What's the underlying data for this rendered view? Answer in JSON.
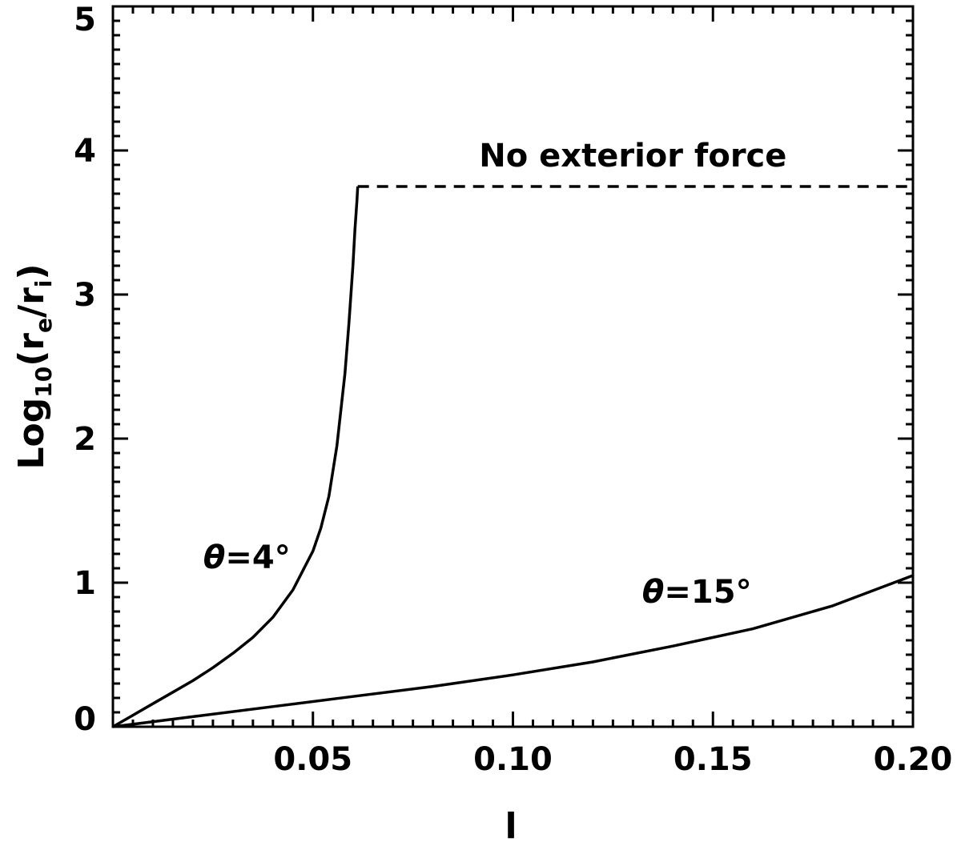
{
  "chart_data": {
    "type": "line",
    "title": "",
    "xlabel": "l",
    "ylabel_parts": {
      "base": "Log",
      "sub1": "10",
      "open": "(r",
      "sub2": "e",
      "mid": "/r",
      "sub3": "i",
      "close": ")"
    },
    "xlim": [
      0,
      0.2
    ],
    "ylim": [
      0,
      5
    ],
    "x_ticks": [
      0.05,
      0.1,
      0.15,
      0.2
    ],
    "x_tick_labels": [
      "0.05",
      "0.10",
      "0.15",
      "0.20"
    ],
    "y_ticks": [
      0,
      1,
      2,
      3,
      4,
      5
    ],
    "y_tick_labels": [
      "0",
      "1",
      "2",
      "3",
      "4",
      "5"
    ],
    "grid": false,
    "series": [
      {
        "style": "solid",
        "x": [
          0,
          0.005,
          0.01,
          0.015,
          0.02,
          0.025,
          0.03,
          0.035,
          0.04,
          0.045,
          0.05,
          0.052,
          0.054,
          0.056,
          0.058,
          0.059,
          0.06,
          0.0605,
          0.061,
          0.0612
        ],
        "y": [
          0,
          0.08,
          0.16,
          0.24,
          0.32,
          0.41,
          0.51,
          0.62,
          0.76,
          0.95,
          1.22,
          1.38,
          1.6,
          1.95,
          2.45,
          2.8,
          3.2,
          3.45,
          3.65,
          3.75
        ]
      },
      {
        "style": "solid",
        "x": [
          0,
          0.02,
          0.04,
          0.06,
          0.08,
          0.1,
          0.12,
          0.14,
          0.16,
          0.18,
          0.2
        ],
        "y": [
          0,
          0.07,
          0.14,
          0.21,
          0.28,
          0.36,
          0.45,
          0.56,
          0.68,
          0.84,
          1.05
        ]
      },
      {
        "style": "dashed",
        "x": [
          0.0612,
          0.2
        ],
        "y": [
          3.75,
          3.75
        ]
      }
    ],
    "annotations": [
      {
        "text": "No exterior force",
        "x": 0.13,
        "y": 3.89
      },
      {
        "text": "θ=4°",
        "x": 0.0335,
        "y": 1.1
      },
      {
        "text": "θ=15°",
        "x": 0.146,
        "y": 0.86
      }
    ]
  }
}
